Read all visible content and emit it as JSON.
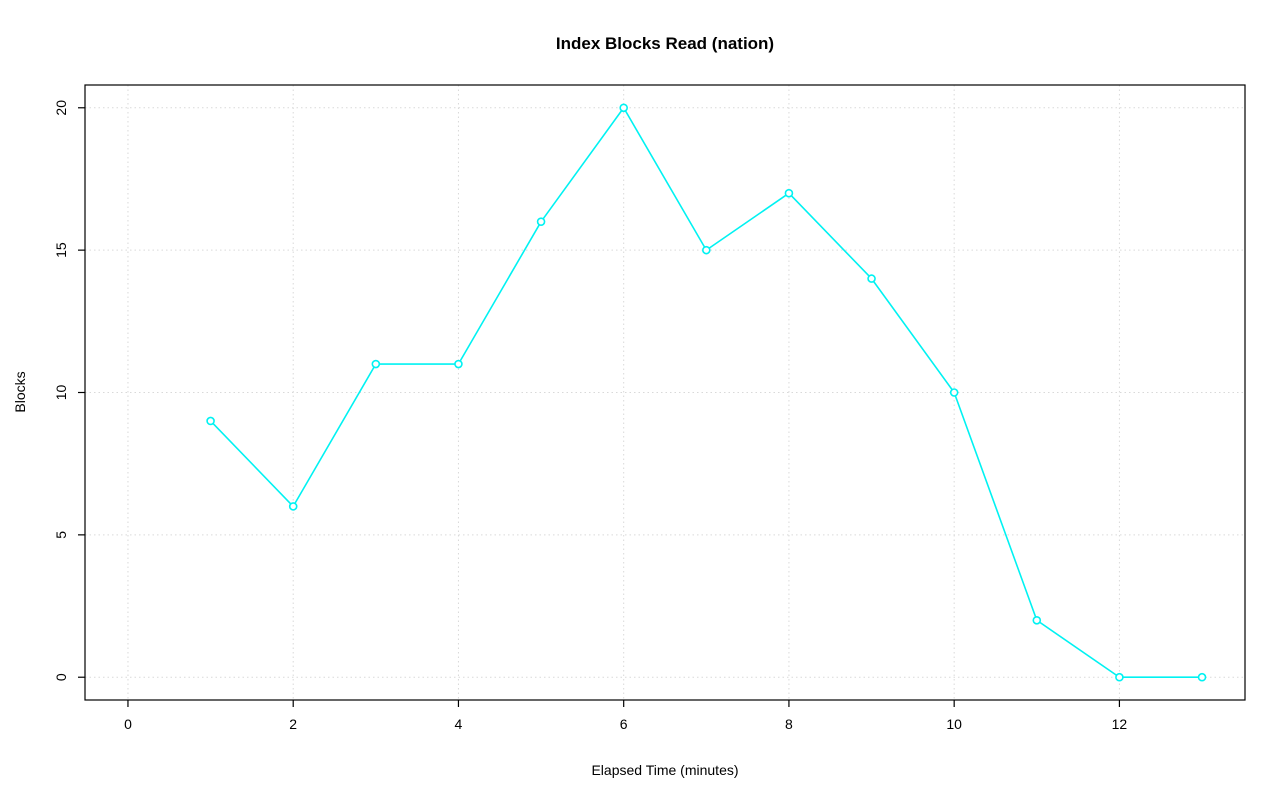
{
  "chart_data": {
    "type": "line",
    "title": "Index Blocks Read (nation)",
    "xlabel": "Elapsed Time (minutes)",
    "ylabel": "Blocks",
    "x": [
      1,
      2,
      3,
      4,
      5,
      6,
      7,
      8,
      9,
      10,
      11,
      12,
      13
    ],
    "y": [
      9,
      6,
      11,
      11,
      16,
      20,
      15,
      17,
      14,
      10,
      2,
      0,
      0
    ],
    "xticks": [
      0,
      2,
      4,
      6,
      8,
      10,
      12
    ],
    "yticks": [
      0,
      5,
      10,
      15,
      20
    ],
    "xlim": [
      -0.52,
      13.52
    ],
    "ylim": [
      -0.8,
      20.8
    ],
    "grid": true,
    "legend": "none",
    "marker": "open-circle",
    "line_color": "#00f2f2",
    "grid_color": "#d9d9d9",
    "axis_color": "#000000",
    "background": "#ffffff"
  }
}
